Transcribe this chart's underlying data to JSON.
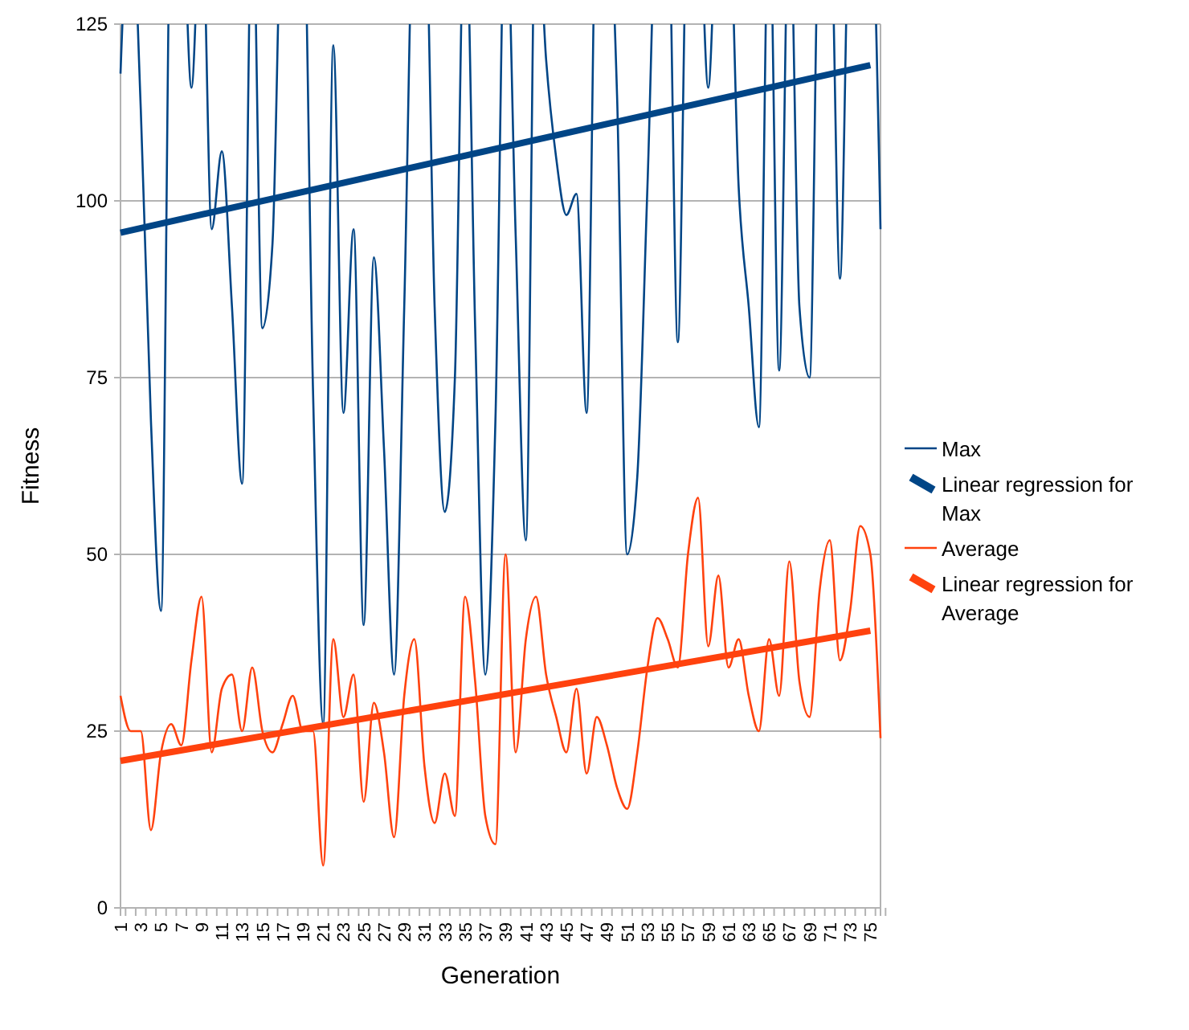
{
  "chart_data": {
    "type": "line",
    "xlabel": "Generation",
    "ylabel": "Fitness",
    "categories": [
      "1",
      null,
      "3",
      null,
      "5",
      null,
      "7",
      null,
      "9",
      null,
      "11",
      null,
      "13",
      null,
      "15",
      null,
      "17",
      null,
      "19",
      null,
      "21",
      null,
      "23",
      null,
      "25",
      null,
      "27",
      null,
      "29",
      null,
      "31",
      null,
      "33",
      null,
      "35",
      null,
      "37",
      null,
      "39",
      null,
      "41",
      null,
      "43",
      null,
      "45",
      null,
      "47",
      null,
      "49",
      null,
      "51",
      null,
      "53",
      null,
      "55",
      null,
      "57",
      null,
      "59",
      null,
      "61",
      null,
      "63",
      null,
      "65",
      null,
      "67",
      null,
      "69",
      null,
      "71",
      null,
      "73",
      null,
      "75",
      null
    ],
    "ylim": [
      0,
      125
    ],
    "yticks": [
      0,
      25,
      50,
      75,
      100,
      125
    ],
    "grid": "y",
    "legend": "right",
    "line_style": "solid",
    "series": [
      {
        "name": "Max",
        "color": "#004586",
        "values": [
          118,
          null,
          113,
          69,
          42,
          null,
          null,
          116,
          null,
          96,
          107,
          85,
          60,
          null,
          82,
          94,
          null,
          null,
          null,
          73,
          26,
          122,
          70,
          96,
          40,
          92,
          65,
          33,
          85,
          null,
          null,
          85,
          56,
          75,
          null,
          82,
          33,
          69,
          null,
          95,
          52,
          null,
          120,
          106,
          98,
          101,
          70,
          null,
          null,
          115,
          50,
          61,
          102,
          null,
          null,
          80,
          null,
          null,
          116,
          null,
          null,
          102,
          85,
          68,
          null,
          76,
          null,
          85,
          75,
          null,
          null,
          89,
          null,
          null,
          null,
          96
        ]
      },
      {
        "name": "Linear regression for Max",
        "color": "#004586",
        "x": [
          "1",
          "75"
        ],
        "values": [
          95.5,
          119.2
        ]
      },
      {
        "name": "Average",
        "color": "#ff420e",
        "values": [
          30,
          25,
          25,
          11,
          22,
          26,
          23,
          35,
          44,
          22,
          31,
          33,
          25,
          34,
          25,
          22,
          26,
          30,
          25,
          25,
          6,
          38,
          27,
          33,
          15,
          29,
          22,
          10,
          30,
          38,
          20,
          12,
          19,
          13,
          44,
          32,
          13,
          9,
          50,
          22,
          38,
          44,
          33,
          27,
          22,
          31,
          19,
          27,
          23,
          17,
          14,
          22,
          34,
          41,
          38,
          34,
          50,
          58,
          37,
          47,
          34,
          38,
          30,
          25,
          38,
          30,
          49,
          32,
          27,
          45,
          52,
          35,
          42,
          54,
          50,
          24
        ]
      },
      {
        "name": "Linear regression for Average",
        "color": "#ff420e",
        "x": [
          "1",
          "75"
        ],
        "values": [
          20.8,
          39.2
        ]
      }
    ]
  }
}
